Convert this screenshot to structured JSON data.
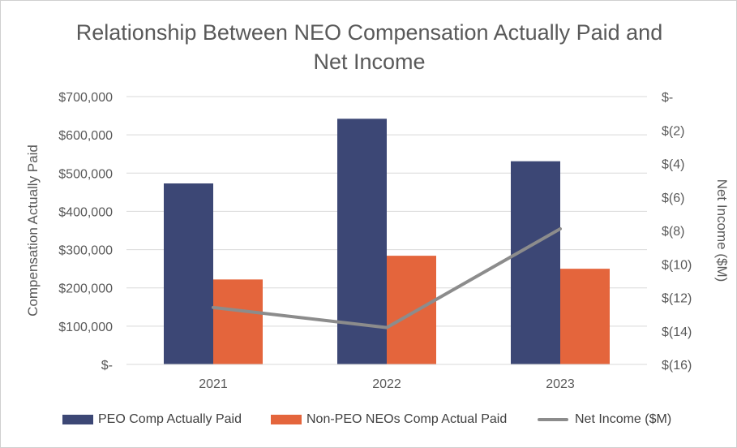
{
  "chart_data": {
    "type": "bar",
    "title": [
      "Relationship Between NEO Compensation Actually Paid and",
      "Net Income"
    ],
    "categories": [
      "2021",
      "2022",
      "2023"
    ],
    "ylabel": "Compensation Actually Paid",
    "y2label": "Net Income ($M)",
    "ylim": [
      0,
      700000
    ],
    "y2lim": [
      -16,
      0
    ],
    "yticks": [
      0,
      100000,
      200000,
      300000,
      400000,
      500000,
      600000,
      700000
    ],
    "yticklabels": [
      "$-",
      "$100,000",
      "$200,000",
      "$300,000",
      "$400,000",
      "$500,000",
      "$600,000",
      "$700,000"
    ],
    "y2ticks": [
      0,
      -2,
      -4,
      -6,
      -8,
      -10,
      -12,
      -14,
      -16
    ],
    "y2ticklabels": [
      "$-",
      "$(2)",
      "$(4)",
      "$(6)",
      "$(8)",
      "$(10)",
      "$(12)",
      "$(14)",
      "$(16)"
    ],
    "series": [
      {
        "name": "PEO Comp Actually Paid",
        "type": "bar",
        "axis": "left",
        "color": "#3c4775",
        "values": [
          473000,
          642000,
          531000
        ]
      },
      {
        "name": "Non-PEO NEOs Comp Actual Paid",
        "type": "bar",
        "axis": "left",
        "color": "#e4653c",
        "values": [
          222000,
          284000,
          250000
        ]
      },
      {
        "name": "Net Income ($M)",
        "type": "line",
        "axis": "right",
        "color": "#8c8c8c",
        "values": [
          -12.6,
          -13.8,
          -7.9
        ]
      }
    ],
    "legend_position": "bottom",
    "grid": true
  }
}
